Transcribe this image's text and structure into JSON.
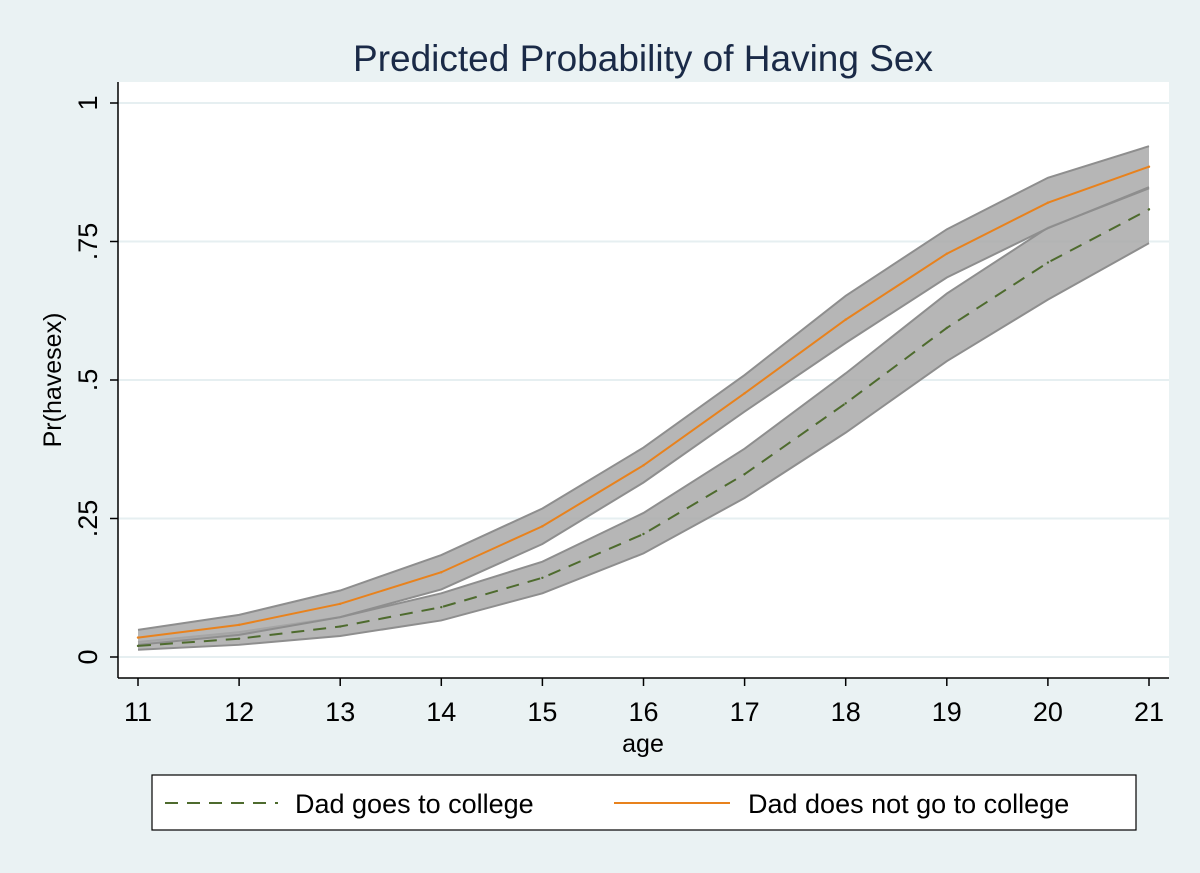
{
  "chart_data": {
    "type": "line",
    "title": "Predicted Probability of Having Sex",
    "xlabel": "age",
    "ylabel": "Pr(havesex)",
    "x": [
      11,
      12,
      13,
      14,
      15,
      16,
      17,
      18,
      19,
      20,
      21
    ],
    "xlim": [
      11,
      21
    ],
    "ylim": [
      0,
      1
    ],
    "y_ticks": [
      0,
      0.25,
      0.5,
      0.75,
      1
    ],
    "y_tick_labels": [
      "0",
      ".25",
      ".5",
      ".75",
      "1"
    ],
    "x_tick_labels": [
      "11",
      "12",
      "13",
      "14",
      "15",
      "16",
      "17",
      "18",
      "19",
      "20",
      "21"
    ],
    "grid": true,
    "legend_position": "bottom",
    "series": [
      {
        "name": "Dad goes to college",
        "color": "#4e6b2e",
        "style": "dashed",
        "values": [
          0.02,
          0.033,
          0.055,
          0.09,
          0.143,
          0.222,
          0.33,
          0.458,
          0.594,
          0.712,
          0.808
        ],
        "ci_lower": [
          0.013,
          0.022,
          0.038,
          0.066,
          0.115,
          0.187,
          0.287,
          0.405,
          0.534,
          0.645,
          0.747
        ],
        "ci_upper": [
          0.027,
          0.045,
          0.072,
          0.115,
          0.172,
          0.26,
          0.376,
          0.512,
          0.656,
          0.775,
          0.846
        ]
      },
      {
        "name": "Dad does not go to college",
        "color": "#e8821d",
        "style": "solid",
        "values": [
          0.035,
          0.058,
          0.096,
          0.153,
          0.236,
          0.346,
          0.476,
          0.609,
          0.728,
          0.82,
          0.885
        ],
        "ci_lower": [
          0.022,
          0.04,
          0.072,
          0.122,
          0.204,
          0.315,
          0.443,
          0.567,
          0.685,
          0.774,
          0.848
        ],
        "ci_upper": [
          0.049,
          0.076,
          0.12,
          0.184,
          0.268,
          0.378,
          0.509,
          0.652,
          0.772,
          0.865,
          0.922
        ]
      }
    ]
  }
}
